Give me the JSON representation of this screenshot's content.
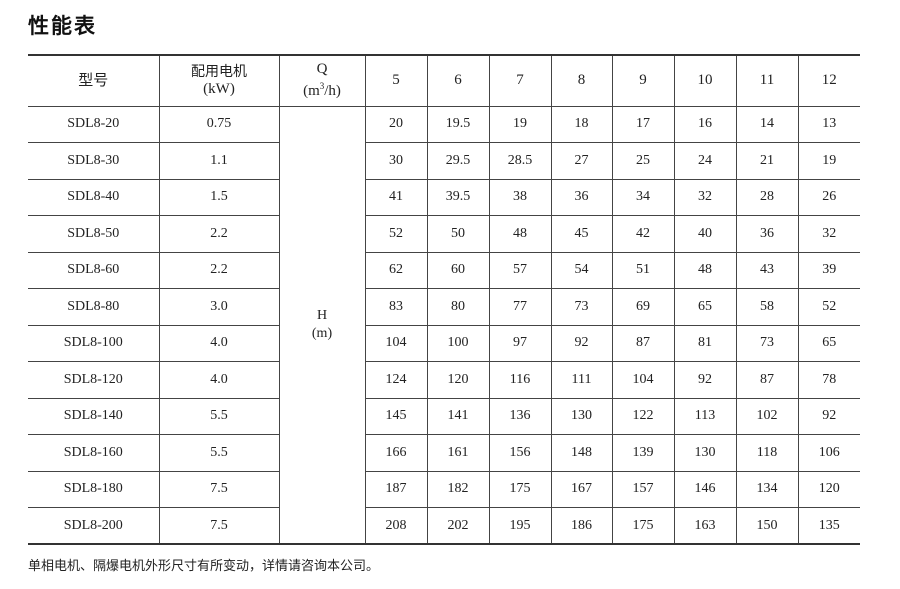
{
  "title": "性能表",
  "table": {
    "headers": {
      "model": "型号",
      "motor_line1": "配用电机",
      "motor_line2": "(kW)",
      "q_line1": "Q",
      "q_line2_pre": "(m",
      "q_line2_sup": "3",
      "q_line2_post": "/h)",
      "flows": [
        "5",
        "6",
        "7",
        "8",
        "9",
        "10",
        "11",
        "12"
      ]
    },
    "h_label": "H",
    "h_unit": "(m)",
    "rows": [
      {
        "model": "SDL8-20",
        "power": "0.75",
        "heads": [
          "20",
          "19.5",
          "19",
          "18",
          "17",
          "16",
          "14",
          "13"
        ]
      },
      {
        "model": "SDL8-30",
        "power": "1.1",
        "heads": [
          "30",
          "29.5",
          "28.5",
          "27",
          "25",
          "24",
          "21",
          "19"
        ]
      },
      {
        "model": "SDL8-40",
        "power": "1.5",
        "heads": [
          "41",
          "39.5",
          "38",
          "36",
          "34",
          "32",
          "28",
          "26"
        ]
      },
      {
        "model": "SDL8-50",
        "power": "2.2",
        "heads": [
          "52",
          "50",
          "48",
          "45",
          "42",
          "40",
          "36",
          "32"
        ]
      },
      {
        "model": "SDL8-60",
        "power": "2.2",
        "heads": [
          "62",
          "60",
          "57",
          "54",
          "51",
          "48",
          "43",
          "39"
        ]
      },
      {
        "model": "SDL8-80",
        "power": "3.0",
        "heads": [
          "83",
          "80",
          "77",
          "73",
          "69",
          "65",
          "58",
          "52"
        ]
      },
      {
        "model": "SDL8-100",
        "power": "4.0",
        "heads": [
          "104",
          "100",
          "97",
          "92",
          "87",
          "81",
          "73",
          "65"
        ]
      },
      {
        "model": "SDL8-120",
        "power": "4.0",
        "heads": [
          "124",
          "120",
          "116",
          "111",
          "104",
          "92",
          "87",
          "78"
        ]
      },
      {
        "model": "SDL8-140",
        "power": "5.5",
        "heads": [
          "145",
          "141",
          "136",
          "130",
          "122",
          "113",
          "102",
          "92"
        ]
      },
      {
        "model": "SDL8-160",
        "power": "5.5",
        "heads": [
          "166",
          "161",
          "156",
          "148",
          "139",
          "130",
          "118",
          "106"
        ]
      },
      {
        "model": "SDL8-180",
        "power": "7.5",
        "heads": [
          "187",
          "182",
          "175",
          "167",
          "157",
          "146",
          "134",
          "120"
        ]
      },
      {
        "model": "SDL8-200",
        "power": "7.5",
        "heads": [
          "208",
          "202",
          "195",
          "186",
          "175",
          "163",
          "150",
          "135"
        ]
      }
    ]
  },
  "footnote": "单相电机、隔爆电机外形尺寸有所变动，详情请咨询本公司。"
}
